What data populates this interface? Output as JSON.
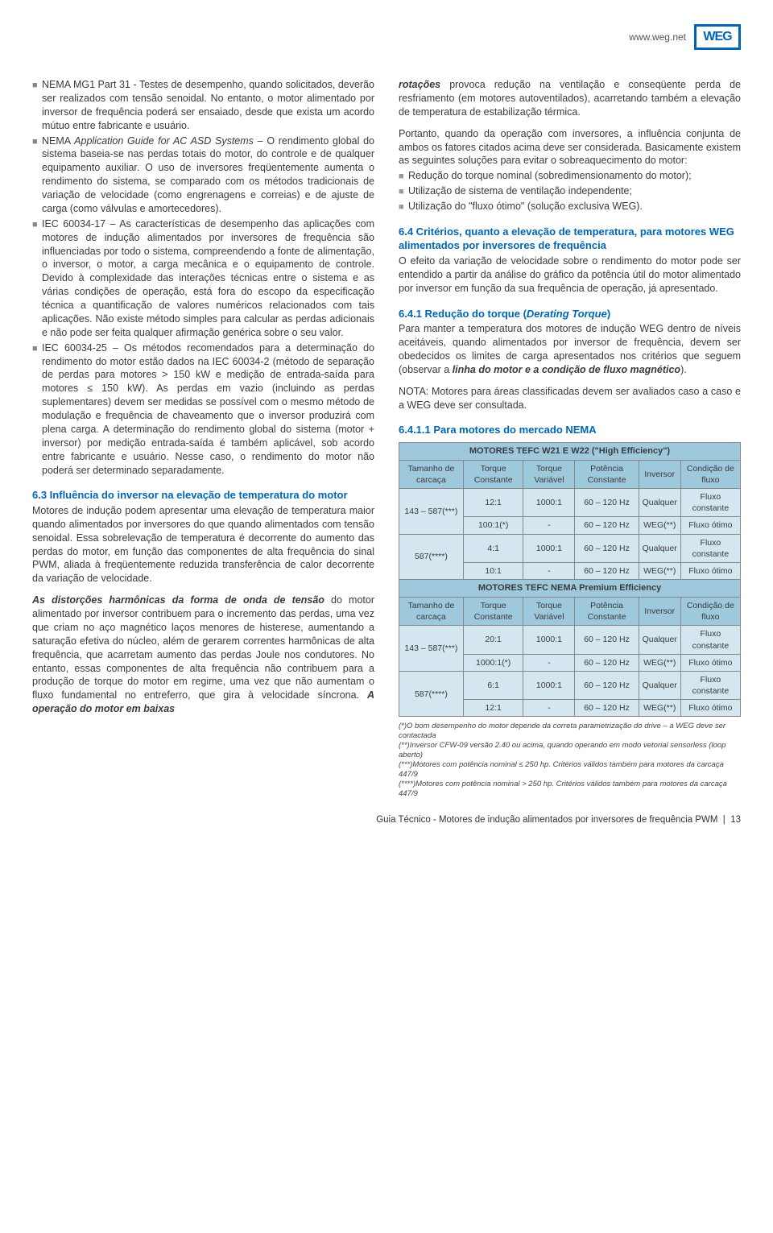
{
  "header": {
    "url": "www.weg.net",
    "logo": "WEG"
  },
  "left": {
    "bullets": [
      "NEMA MG1 Part 31 - Testes de desempenho, quando solicitados, deverão ser realizados com tensão senoidal. No entanto, o motor alimentado por inversor de frequência poderá ser ensaiado, desde que exista um acordo mútuo entre fabricante e usuário.",
      "NEMA <i>Application Guide for AC ASD Systems</i> – O rendimento global do sistema baseia-se nas perdas totais do motor, do controle e de qualquer equipamento auxiliar. O uso de inversores freqüentemente aumenta o rendimento do sistema, se comparado com os métodos tradicionais de variação de velocidade (como engrenagens e correias) e de ajuste de carga (como válvulas e amortecedores).",
      "IEC 60034-17 – As características de desempenho das aplicações com motores de indução alimentados por inversores de frequência são influenciadas por todo o sistema, compreendendo a fonte de alimentação, o inversor, o motor, a carga mecânica e o equipamento de controle. Devido à complexidade das interações técnicas entre o sistema e as várias condições de operação, está fora do escopo da especificação técnica a quantificação de valores numéricos relacionados com tais aplicações. Não existe método simples para calcular as perdas adicionais e não pode ser feita qualquer afirmação genérica sobre o seu valor.",
      "IEC 60034-25 – Os métodos recomendados para a determinação do rendimento do motor estão dados na IEC 60034-2 (método de separação de perdas para motores > 150 kW e medição de entrada-saída para motores ≤ 150 kW). As perdas em vazio (incluindo as perdas suplementares) devem ser medidas se possível com o mesmo método de modulação e frequência de chaveamento que o inversor produzirá com plena carga. A determinação do rendimento global do sistema (motor + inversor) por medição entrada-saída é também aplicável, sob acordo entre fabricante e usuário. Nesse caso, o rendimento do motor não poderá ser determinado separadamente."
    ],
    "s63_title": "6.3 Influência do inversor na elevação de temperatura do motor",
    "s63_p1": "Motores de indução podem apresentar uma elevação de temperatura maior quando alimentados por inversores do que quando alimentados com tensão senoidal. Essa sobrelevação de temperatura é decorrente do aumento das perdas do motor, em função das componentes de alta frequência do sinal PWM, aliada à freqüentemente reduzida transferência de calor decorrente da variação de velocidade.",
    "s63_p2": "<b><i>As distorções harmônicas da forma de onda de tensão</i></b> do motor alimentado por inversor contribuem para o incremento das perdas, uma vez que criam no aço magnético laços menores de histerese, aumentando a saturação efetiva do núcleo, além de gerarem correntes harmônicas de alta frequência, que acarretam aumento das perdas Joule nos condutores. No entanto, essas componentes de alta frequência não contribuem para a produção de torque do motor em regime, uma vez que não aumentam o fluxo fundamental no entreferro, que gira à velocidade síncrona. <b><i>A operação do motor em baixas</i></b>"
  },
  "right": {
    "p1": "<b><i>rotações</i></b> provoca redução na ventilação e conseqüente perda de resfriamento (em motores autoventilados), acarretando também a elevação de temperatura de estabilização térmica.",
    "p2": "Portanto, quando da operação com inversores, a influência conjunta de ambos os fatores citados acima deve ser considerada. Basicamente existem as seguintes soluções para evitar o sobreaquecimento do motor:",
    "bullets2": [
      "Redução do torque nominal (sobredimensionamento do motor);",
      "Utilização de sistema de ventilação independente;",
      "Utilização do \"fluxo ótimo\" (solução exclusiva WEG)."
    ],
    "s64_title": "6.4 Critérios, quanto a elevação de temperatura, para motores WEG alimentados por inversores de frequência",
    "s64_p1": "O efeito da variação de velocidade sobre o rendimento do motor pode ser entendido a partir da análise do gráfico da potência útil do motor alimentado por inversor em função da sua frequência de operação, já apresentado.",
    "s641_title": "6.4.1 Redução do torque (<i>Derating Torque</i>)",
    "s641_p1": "Para manter a temperatura dos motores de indução WEG dentro de níveis aceitáveis, quando alimentados por inversor de frequência, devem ser obedecidos os limites de carga apresentados nos critérios que seguem (observar a <b><i>linha do motor e a condição de fluxo magnético</i></b>).",
    "s641_p2": "NOTA: Motores para áreas classificadas devem ser avaliados caso a caso e a WEG deve ser consultada.",
    "s6411_title": "6.4.1.1 Para motores do mercado NEMA"
  },
  "table1": {
    "title": "MOTORES TEFC W21 E W22 (\"High Efficiency\")",
    "headers": [
      "Tamanho de carcaça",
      "Torque Constante",
      "Torque Variável",
      "Potência Constante",
      "Inversor",
      "Condição de fluxo"
    ],
    "rows": [
      {
        "c0": "143 – 587(***)",
        "c0_rowspan": 2,
        "c1": "12:1",
        "c2": "1000:1",
        "c3": "60 – 120 Hz",
        "c4": "Qualquer",
        "c5": "Fluxo constante"
      },
      {
        "c1": "100:1(*)",
        "c2": "-",
        "c3": "60 – 120 Hz",
        "c4": "WEG(**)",
        "c5": "Fluxo ótimo"
      },
      {
        "c0": "587(****)",
        "c0_rowspan": 2,
        "c1": "4:1",
        "c2": "1000:1",
        "c3": "60 – 120 Hz",
        "c4": "Qualquer",
        "c5": "Fluxo constante"
      },
      {
        "c1": "10:1",
        "c2": "-",
        "c3": "60 – 120 Hz",
        "c4": "WEG(**)",
        "c5": "Fluxo ótimo"
      }
    ]
  },
  "table2": {
    "title": "MOTORES TEFC NEMA Premium Efficiency",
    "headers": [
      "Tamanho de carcaça",
      "Torque Constante",
      "Torque Variável",
      "Potência Constante",
      "Inversor",
      "Condição de fluxo"
    ],
    "rows": [
      {
        "c0": "143 – 587(***)",
        "c0_rowspan": 2,
        "c1": "20:1",
        "c2": "1000:1",
        "c3": "60 – 120 Hz",
        "c4": "Qualquer",
        "c5": "Fluxo constante"
      },
      {
        "c1": "1000:1(*)",
        "c2": "-",
        "c3": "60 – 120 Hz",
        "c4": "WEG(**)",
        "c5": "Fluxo ótimo"
      },
      {
        "c0": "587(****)",
        "c0_rowspan": 2,
        "c1": "6:1",
        "c2": "1000:1",
        "c3": "60 – 120 Hz",
        "c4": "Qualquer",
        "c5": "Fluxo constante"
      },
      {
        "c1": "12:1",
        "c2": "-",
        "c3": "60 – 120 Hz",
        "c4": "WEG(**)",
        "c5": "Fluxo ótimo"
      }
    ]
  },
  "footnotes": [
    "(*)O bom desempenho do motor depende da correta parametrização do drive – a WEG deve ser contactada",
    "(**)Inversor CFW-09 versão 2.40 ou acima, quando operando em modo vetorial sensorless (loop aberto)",
    "(***)Motores com potência nominal ≤ 250 hp. Critérios válidos também para motores da carcaça 447/9",
    "(****)Motores com potência nominal > 250 hp. Critérios válidos também para motores da carcaça 447/9"
  ],
  "footer": {
    "text": "Guia Técnico - Motores de indução alimentados por inversores de frequência PWM",
    "page": "13"
  }
}
